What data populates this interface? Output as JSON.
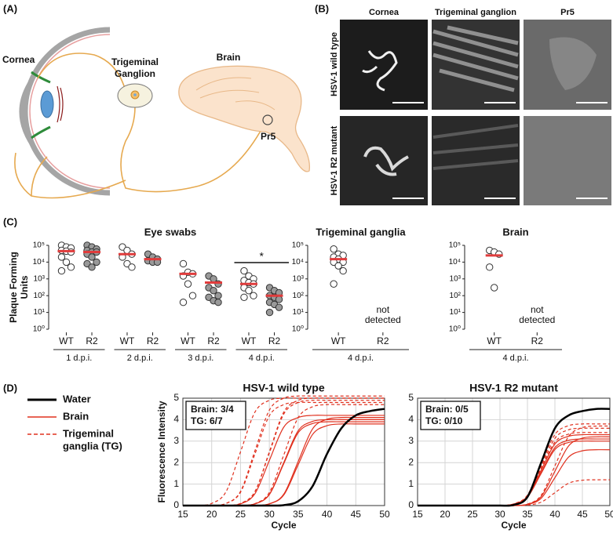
{
  "panels": {
    "a": "(A)",
    "b": "(B)",
    "c": "(C)",
    "d": "(D)"
  },
  "diagram": {
    "cornea": "Cornea",
    "trigeminal_ganglion": [
      "Trigeminal",
      "Ganglion"
    ],
    "brain": "Brain",
    "pr5": "Pr5"
  },
  "images": {
    "columns": [
      "Cornea",
      "Trigeminal ganglion",
      "Pr5"
    ],
    "rows": [
      "HSV-1 wild type",
      "HSV-1 R2 mutant"
    ]
  },
  "legend": [
    {
      "name": [
        "Water"
      ],
      "color": "#000000",
      "dashed": false
    },
    {
      "name": [
        "Brain"
      ],
      "color": "#e0301e",
      "dashed": false
    },
    {
      "name": [
        "Trigeminal",
        "ganglia (TG)"
      ],
      "color": "#e0301e",
      "dashed": true
    }
  ],
  "chart_data": [
    {
      "type": "strip",
      "title": "Eye swabs",
      "ylabel": [
        "Plaque Forming",
        "Units"
      ],
      "log_scale": true,
      "ylim": [
        1,
        100000
      ],
      "yticks": [
        {
          "value": 1,
          "label": "10⁰"
        },
        {
          "value": 10,
          "label": "10¹"
        },
        {
          "value": 100,
          "label": "10²"
        },
        {
          "value": 1000,
          "label": "10³"
        },
        {
          "value": 10000,
          "label": "10⁴"
        },
        {
          "value": 100000,
          "label": "10⁵"
        }
      ],
      "categories": [
        "WT",
        "R2",
        "WT",
        "R2",
        "WT",
        "R2",
        "WT",
        "R2"
      ],
      "groups": [
        "1 d.p.i.",
        "2 d.p.i.",
        "3 d.p.i.",
        "4 d.p.i."
      ],
      "fills": [
        "#ffffff",
        "#999999",
        "#ffffff",
        "#999999",
        "#ffffff",
        "#999999",
        "#ffffff",
        "#999999"
      ],
      "median_color": "#e03c3c",
      "points": [
        [
          100000,
          80000,
          70000,
          50000,
          45000,
          40000,
          20000,
          10000,
          5000,
          3000
        ],
        [
          100000,
          80000,
          60000,
          50000,
          40000,
          40000,
          30000,
          20000,
          10000,
          8000,
          5000
        ],
        [
          80000,
          50000,
          30000,
          20000,
          8000,
          5000
        ],
        [
          30000,
          20000,
          15000,
          12000,
          10000,
          10000
        ],
        [
          8000,
          2500,
          2000,
          1500,
          500,
          100,
          40
        ],
        [
          1500,
          1000,
          500,
          300,
          200,
          100,
          80,
          50,
          40
        ],
        [
          3000,
          1500,
          1000,
          800,
          600,
          500,
          300,
          200,
          100,
          80
        ],
        [
          300,
          200,
          150,
          100,
          80,
          60,
          40,
          30,
          20,
          10
        ]
      ],
      "medians": [
        45000,
        40000,
        30000,
        15000,
        2000,
        600,
        500,
        100
      ],
      "significance": "*"
    },
    {
      "type": "strip",
      "title": "Trigeminal ganglia",
      "log_scale": true,
      "ylim": [
        1,
        100000
      ],
      "yticks": [
        {
          "value": 1,
          "label": "10⁰"
        },
        {
          "value": 10,
          "label": "10¹"
        },
        {
          "value": 100,
          "label": "10²"
        },
        {
          "value": 1000,
          "label": "10³"
        },
        {
          "value": 10000,
          "label": "10⁴"
        },
        {
          "value": 100000,
          "label": "10⁵"
        }
      ],
      "categories": [
        "WT",
        "R2"
      ],
      "groups": [
        "4 d.p.i."
      ],
      "fills": [
        "#ffffff",
        "#999999"
      ],
      "median_color": "#e03c3c",
      "points": [
        [
          60000,
          30000,
          25000,
          20000,
          15000,
          10000,
          10000,
          6000,
          3000,
          500
        ],
        null
      ],
      "medians": [
        15000,
        null
      ],
      "annotation": [
        "not",
        "detected"
      ]
    },
    {
      "type": "strip",
      "title": "Brain",
      "log_scale": true,
      "ylim": [
        1,
        100000
      ],
      "yticks": [
        {
          "value": 1,
          "label": "10⁰"
        },
        {
          "value": 10,
          "label": "10¹"
        },
        {
          "value": 100,
          "label": "10²"
        },
        {
          "value": 1000,
          "label": "10³"
        },
        {
          "value": 10000,
          "label": "10⁴"
        },
        {
          "value": 100000,
          "label": "10⁵"
        }
      ],
      "categories": [
        "WT",
        "R2"
      ],
      "groups": [
        "4 d.p.i."
      ],
      "fills": [
        "#ffffff",
        "#999999"
      ],
      "median_color": "#e03c3c",
      "points": [
        [
          50000,
          40000,
          30000,
          5000,
          300
        ],
        null
      ],
      "medians": [
        25000,
        null
      ],
      "annotation": [
        "not",
        "detected"
      ]
    },
    {
      "type": "line",
      "title": "HSV-1 wild type",
      "xlabel": "Cycle",
      "ylabel": "Fluorescence Intensity",
      "grid": true,
      "x": [
        15,
        17.5,
        20,
        22.5,
        25,
        27.5,
        30,
        32.5,
        35,
        37.5,
        40,
        42.5,
        45,
        47.5,
        50
      ],
      "xlim": [
        15,
        50
      ],
      "xticks": [
        15,
        20,
        25,
        30,
        35,
        40,
        45,
        50
      ],
      "ylim": [
        0,
        5
      ],
      "yticks": [
        0,
        1,
        2,
        3,
        4,
        5
      ],
      "annotation": [
        "Brain: 3/4",
        "TG: 6/7"
      ],
      "series": [
        {
          "color": "#e0301e",
          "dashed": true,
          "values": [
            0,
            0,
            0.1,
            0.65,
            2.5,
            4.35,
            4.9,
            5,
            5,
            5,
            5,
            5,
            5,
            5,
            5
          ]
        },
        {
          "color": "#e0301e",
          "dashed": true,
          "values": [
            0,
            0,
            0,
            0.1,
            0.66,
            2.55,
            4.44,
            5,
            5.1,
            5.1,
            5.1,
            5.1,
            5.1,
            5.1,
            5.1
          ]
        },
        {
          "color": "#e0301e",
          "dashed": true,
          "values": [
            0,
            0,
            0,
            0.1,
            0.62,
            2.4,
            4.18,
            4.7,
            4.8,
            4.8,
            4.8,
            4.8,
            4.8,
            4.8,
            4.8
          ]
        },
        {
          "color": "#e0301e",
          "dashed": true,
          "values": [
            0,
            0,
            0,
            0,
            0.1,
            0.64,
            2.45,
            4.26,
            4.8,
            4.9,
            4.9,
            4.9,
            4.9,
            4.9,
            4.9
          ]
        },
        {
          "color": "#e0301e",
          "dashed": true,
          "values": [
            0,
            0,
            0,
            0,
            0.1,
            0.65,
            2.5,
            4.35,
            4.9,
            5,
            5,
            5,
            5,
            5,
            5
          ]
        },
        {
          "color": "#e0301e",
          "dashed": true,
          "values": [
            0,
            0,
            0,
            0,
            0,
            0.09,
            0.61,
            2.35,
            4.09,
            4.6,
            4.7,
            4.7,
            4.7,
            4.7,
            4.7
          ]
        },
        {
          "color": "#e0301e",
          "dashed": false,
          "values": [
            0,
            0,
            0,
            0,
            0.08,
            0.55,
            2.1,
            3.65,
            4.1,
            4.2,
            4.2,
            4.2,
            4.2,
            4.2,
            4.2
          ]
        },
        {
          "color": "#e0301e",
          "dashed": false,
          "values": [
            0,
            0,
            0,
            0,
            0,
            0.08,
            0.52,
            2,
            3.48,
            3.92,
            4,
            4,
            4,
            4,
            4
          ]
        },
        {
          "color": "#e0301e",
          "dashed": false,
          "values": [
            0,
            0,
            0,
            0,
            0,
            0.08,
            0.51,
            1.95,
            3.39,
            3.82,
            3.9,
            3.9,
            3.9,
            3.9,
            3.9
          ]
        },
        {
          "color": "#e0301e",
          "dashed": false,
          "values": [
            0,
            0,
            0,
            0,
            0,
            0,
            0.08,
            0.53,
            2.05,
            3.57,
            4.02,
            4.1,
            4.1,
            4.1,
            4.1
          ]
        },
        {
          "color": "#e0301e",
          "dashed": false,
          "values": [
            0,
            0,
            0,
            0,
            0,
            0,
            0.08,
            0.49,
            1.9,
            3.31,
            3.72,
            3.8,
            3.8,
            3.8,
            3.8
          ]
        },
        {
          "color": "#000000",
          "dashed": false,
          "values": [
            0,
            0,
            0,
            0,
            0,
            0,
            0,
            0.02,
            0.2,
            0.9,
            2.4,
            3.6,
            4.2,
            4.4,
            4.5
          ]
        }
      ]
    },
    {
      "type": "line",
      "title": "HSV-1 R2 mutant",
      "xlabel": "Cycle",
      "grid": true,
      "x": [
        15,
        17.5,
        20,
        22.5,
        25,
        27.5,
        30,
        32.5,
        35,
        37.5,
        40,
        42.5,
        45,
        47.5,
        50
      ],
      "xlim": [
        15,
        50
      ],
      "xticks": [
        15,
        20,
        25,
        30,
        35,
        40,
        45,
        50
      ],
      "ylim": [
        0,
        5
      ],
      "yticks": [
        0,
        1,
        2,
        3,
        4,
        5
      ],
      "annotation": [
        "Brain: 0/5",
        "TG: 0/10"
      ],
      "series": [
        {
          "color": "#e0301e",
          "dashed": true,
          "values": [
            0,
            0,
            0,
            0,
            0,
            0,
            0,
            0.08,
            0.49,
            1.9,
            3.31,
            3.72,
            3.8,
            3.8,
            3.8
          ]
        },
        {
          "color": "#e0301e",
          "dashed": true,
          "values": [
            0,
            0,
            0,
            0,
            0,
            0,
            0,
            0.07,
            0.47,
            1.8,
            3.13,
            3.53,
            3.6,
            3.6,
            3.6
          ]
        },
        {
          "color": "#e0301e",
          "dashed": true,
          "values": [
            0,
            0,
            0,
            0,
            0,
            0,
            0,
            0.07,
            0.44,
            1.7,
            2.96,
            3.33,
            3.4,
            3.4,
            3.4
          ]
        },
        {
          "color": "#e0301e",
          "dashed": true,
          "values": [
            0,
            0,
            0,
            0,
            0,
            0,
            0,
            0,
            0.07,
            0.48,
            1.85,
            3.22,
            3.63,
            3.7,
            3.7
          ]
        },
        {
          "color": "#e0301e",
          "dashed": true,
          "values": [
            0,
            0,
            0,
            0,
            0,
            0,
            0,
            0,
            0.02,
            0.16,
            0.6,
            1.04,
            1.18,
            1.2,
            1.2
          ]
        },
        {
          "color": "#e0301e",
          "dashed": false,
          "values": [
            0,
            0,
            0,
            0,
            0,
            0,
            0,
            0.07,
            0.43,
            1.65,
            2.87,
            3.23,
            3.3,
            3.3,
            3.3
          ]
        },
        {
          "color": "#e0301e",
          "dashed": false,
          "values": [
            0,
            0,
            0,
            0,
            0,
            0,
            0,
            0.06,
            0.4,
            1.55,
            2.7,
            3.04,
            3.1,
            3.1,
            3.1
          ]
        },
        {
          "color": "#e0301e",
          "dashed": false,
          "values": [
            0,
            0,
            0,
            0,
            0,
            0,
            0,
            0,
            0.06,
            0.42,
            1.6,
            2.78,
            3.14,
            3.2,
            3.2
          ]
        },
        {
          "color": "#e0301e",
          "dashed": false,
          "values": [
            0,
            0,
            0,
            0,
            0,
            0,
            0,
            0,
            0.05,
            0.34,
            1.3,
            2.26,
            2.55,
            2.6,
            2.6
          ]
        },
        {
          "color": "#e0301e",
          "dashed": false,
          "values": [
            0,
            0,
            0,
            0,
            0,
            0,
            0,
            0.06,
            0.39,
            1.5,
            2.61,
            2.94,
            3,
            3,
            3
          ]
        },
        {
          "color": "#000000",
          "dashed": false,
          "values": [
            0,
            0,
            0,
            0,
            0,
            0,
            0,
            0.03,
            0.4,
            2,
            3.6,
            4.2,
            4.4,
            4.5,
            4.5
          ]
        }
      ]
    }
  ]
}
